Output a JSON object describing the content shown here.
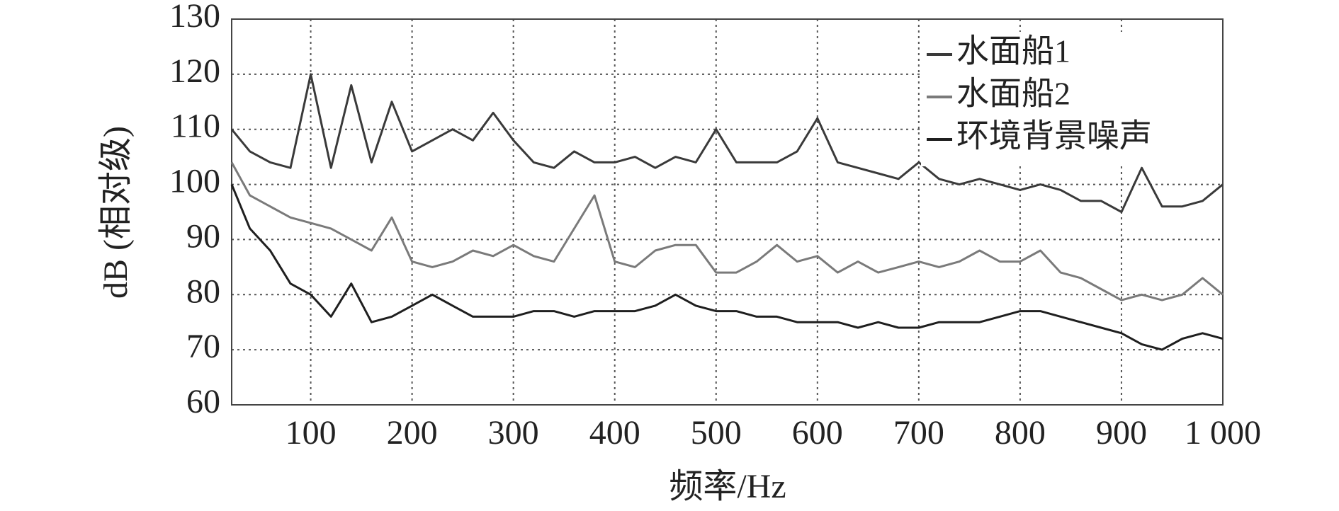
{
  "chart_data": {
    "type": "line",
    "xlabel": "频率/Hz",
    "ylabel": "dB (相对级)",
    "x": [
      22,
      40,
      60,
      80,
      100,
      120,
      140,
      160,
      180,
      200,
      220,
      240,
      260,
      280,
      300,
      320,
      340,
      360,
      380,
      400,
      420,
      440,
      460,
      480,
      500,
      520,
      540,
      560,
      580,
      600,
      620,
      640,
      660,
      680,
      700,
      720,
      740,
      760,
      780,
      800,
      820,
      840,
      860,
      880,
      900,
      920,
      940,
      960,
      980,
      1000
    ],
    "series": [
      {
        "name": "水面船1",
        "color": "#3a3a3a",
        "values": [
          110,
          106,
          104,
          103,
          120,
          103,
          118,
          104,
          115,
          106,
          108,
          110,
          108,
          113,
          108,
          104,
          103,
          106,
          104,
          104,
          105,
          103,
          105,
          104,
          110,
          104,
          104,
          104,
          106,
          112,
          104,
          103,
          102,
          101,
          104,
          101,
          100,
          101,
          100,
          99,
          100,
          99,
          97,
          97,
          95,
          103,
          96,
          96,
          97,
          100
        ]
      },
      {
        "name": "水面船2",
        "color": "#7a7a7a",
        "values": [
          104,
          98,
          96,
          94,
          93,
          92,
          90,
          88,
          94,
          86,
          85,
          86,
          88,
          87,
          89,
          87,
          86,
          92,
          98,
          86,
          85,
          88,
          89,
          89,
          84,
          84,
          86,
          89,
          86,
          87,
          84,
          86,
          84,
          85,
          86,
          85,
          86,
          88,
          86,
          86,
          88,
          84,
          83,
          81,
          79,
          80,
          79,
          80,
          83,
          80
        ]
      },
      {
        "name": "环境背景噪声",
        "color": "#1f1f1f",
        "values": [
          100,
          92,
          88,
          82,
          80,
          76,
          82,
          75,
          76,
          78,
          80,
          78,
          76,
          76,
          76,
          77,
          77,
          76,
          77,
          77,
          77,
          78,
          80,
          78,
          77,
          77,
          76,
          76,
          75,
          75,
          75,
          74,
          75,
          74,
          74,
          75,
          75,
          75,
          76,
          77,
          77,
          76,
          75,
          74,
          73,
          71,
          70,
          72,
          73,
          72
        ]
      }
    ],
    "xlim": [
      22,
      1000
    ],
    "ylim": [
      60,
      130
    ],
    "xticks": [
      100,
      200,
      300,
      400,
      500,
      600,
      700,
      800,
      900,
      {
        "value": 1000,
        "label": "1 000"
      }
    ],
    "yticks": [
      60,
      70,
      80,
      90,
      100,
      110,
      120,
      130
    ],
    "grid": true,
    "legend": "upper right"
  }
}
